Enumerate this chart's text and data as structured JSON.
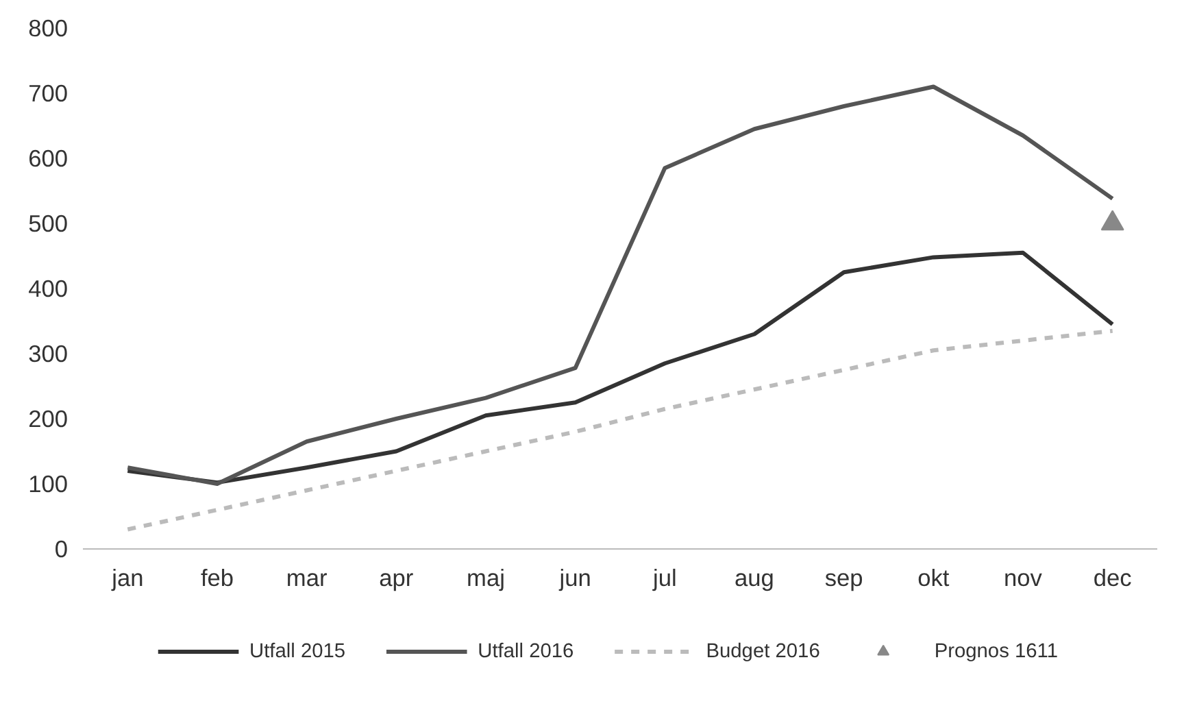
{
  "chart_data": {
    "type": "line",
    "categories": [
      "jan",
      "feb",
      "mar",
      "apr",
      "maj",
      "jun",
      "jul",
      "aug",
      "sep",
      "okt",
      "nov",
      "dec"
    ],
    "series": [
      {
        "name": "Utfall 2015",
        "color": "#333333",
        "values": [
          120,
          102,
          125,
          150,
          205,
          225,
          285,
          330,
          425,
          448,
          455,
          345
        ]
      },
      {
        "name": "Utfall 2016",
        "color": "#555555",
        "values": [
          125,
          100,
          165,
          200,
          232,
          278,
          585,
          645,
          680,
          710,
          635,
          538
        ]
      },
      {
        "name": "Budget 2016",
        "color": "#bbbbbb",
        "line_style": "dashed",
        "values": [
          30,
          60,
          90,
          120,
          150,
          180,
          215,
          245,
          275,
          305,
          320,
          335
        ]
      },
      {
        "name": "Prognos 1611",
        "color": "#888888",
        "type": "scatter",
        "marker": "triangle",
        "values": [
          null,
          null,
          null,
          null,
          null,
          null,
          null,
          null,
          null,
          null,
          null,
          500
        ]
      }
    ],
    "ylim": [
      0,
      800
    ],
    "yticks": [
      0,
      100,
      200,
      300,
      400,
      500,
      600,
      700,
      800
    ],
    "grid": false,
    "legend": "bottom"
  }
}
